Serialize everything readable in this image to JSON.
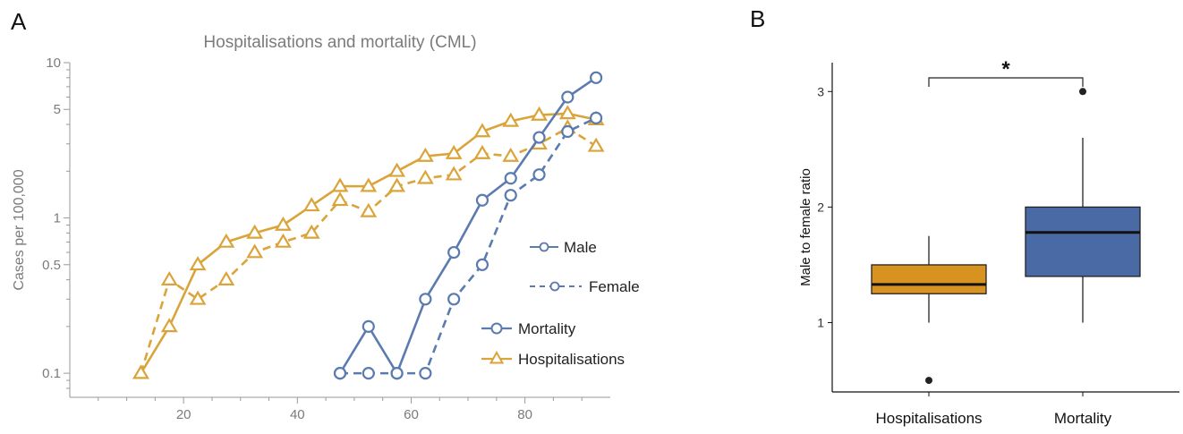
{
  "panel_labels": {
    "a": "A",
    "b": "B"
  },
  "chart_data": [
    {
      "type": "line",
      "title": "Hospitalisations and mortality (CML)",
      "xlabel": "",
      "ylabel": "Cases per 100,000",
      "yscale": "log",
      "xlim": [
        0,
        95
      ],
      "ylim": [
        0.07,
        10
      ],
      "xticks": [
        20,
        40,
        60,
        80
      ],
      "yticks": [
        0.1,
        0.5,
        1,
        5,
        10
      ],
      "ytick_labels": [
        "0.1",
        "0.5",
        "1",
        "5",
        "10"
      ],
      "grid": false,
      "legend": {
        "placement": "right",
        "entries": [
          {
            "label": "Male",
            "style": "solid"
          },
          {
            "label": "Female",
            "style": "dashed"
          },
          {
            "label": "Mortality",
            "color": "#5b7bb0",
            "marker": "circle"
          },
          {
            "label": "Hospitalisations",
            "color": "#dba43a",
            "marker": "triangle"
          }
        ]
      },
      "series": [
        {
          "name": "Hospitalisations",
          "sex": "Male",
          "color": "#dba43a",
          "marker": "triangle",
          "dash": false,
          "x": [
            12.5,
            17.5,
            22.5,
            27.5,
            32.5,
            37.5,
            42.5,
            47.5,
            52.5,
            57.5,
            62.5,
            67.5,
            72.5,
            77.5,
            82.5,
            87.5,
            92.5
          ],
          "y": [
            0.1,
            0.2,
            0.5,
            0.7,
            0.8,
            0.9,
            1.2,
            1.6,
            1.6,
            2.0,
            2.5,
            2.6,
            3.6,
            4.2,
            4.6,
            4.7,
            4.3
          ]
        },
        {
          "name": "Hospitalisations",
          "sex": "Female",
          "color": "#dba43a",
          "marker": "triangle",
          "dash": true,
          "x": [
            12.5,
            17.5,
            22.5,
            27.5,
            32.5,
            37.5,
            42.5,
            47.5,
            52.5,
            57.5,
            62.5,
            67.5,
            72.5,
            77.5,
            82.5,
            87.5,
            92.5
          ],
          "y": [
            0.1,
            0.4,
            0.3,
            0.4,
            0.6,
            0.7,
            0.8,
            1.3,
            1.1,
            1.6,
            1.8,
            1.9,
            2.6,
            2.5,
            3.0,
            3.8,
            2.9
          ]
        },
        {
          "name": "Mortality",
          "sex": "Male",
          "color": "#5b7bb0",
          "marker": "circle",
          "dash": false,
          "x": [
            47.5,
            52.5,
            57.5,
            62.5,
            67.5,
            72.5,
            77.5,
            82.5,
            87.5,
            92.5
          ],
          "y": [
            0.1,
            0.2,
            0.1,
            0.3,
            0.6,
            1.3,
            1.8,
            3.3,
            6.0,
            8.0
          ]
        },
        {
          "name": "Mortality",
          "sex": "Female",
          "color": "#5b7bb0",
          "marker": "circle",
          "dash": true,
          "x": [
            47.5,
            52.5,
            57.5,
            62.5,
            67.5,
            72.5,
            77.5,
            82.5,
            87.5,
            92.5
          ],
          "y": [
            0.1,
            0.1,
            0.1,
            0.1,
            0.3,
            0.5,
            1.4,
            1.9,
            3.6,
            4.4
          ]
        }
      ]
    },
    {
      "type": "box",
      "title": "",
      "xlabel": "",
      "ylabel": "Male to female ratio",
      "categories": [
        "Hospitalisations",
        "Mortality"
      ],
      "ylim": [
        0.4,
        3.25
      ],
      "yticks": [
        1,
        2,
        3
      ],
      "ytick_labels": [
        "1",
        "2",
        "3"
      ],
      "grid": false,
      "boxes": [
        {
          "name": "Hospitalisations",
          "color": "#d8921f",
          "whisker_low": 1.0,
          "q1": 1.25,
          "median": 1.33,
          "q3": 1.5,
          "whisker_high": 1.75,
          "outliers": [
            0.5
          ]
        },
        {
          "name": "Mortality",
          "color": "#4a6aa5",
          "whisker_low": 1.0,
          "q1": 1.4,
          "median": 1.78,
          "q3": 2.0,
          "whisker_high": 2.6,
          "outliers": [
            3.0
          ]
        }
      ],
      "significance": "*"
    }
  ]
}
